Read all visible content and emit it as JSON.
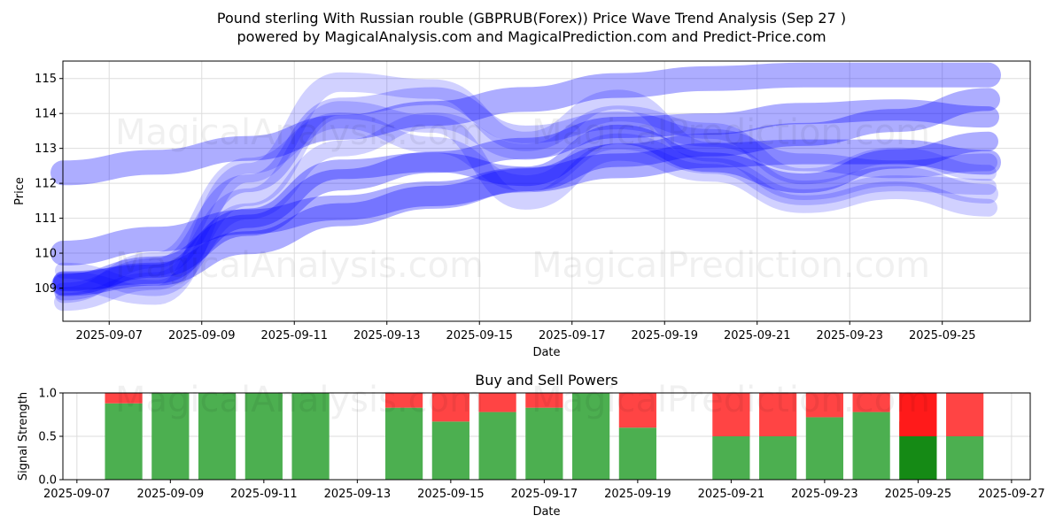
{
  "title_line1": "Pound sterling With Russian rouble (GBPRUB(Forex)) Price Wave Trend Analysis (Sep 27 )",
  "title_line2": "powered by MagicalAnalysis.com and MagicalPrediction.com and Predict-Price.com",
  "watermark_left": "MagicalAnalysis.com",
  "watermark_right": "MagicalPrediction.com",
  "colors": {
    "wave": "#0000ff",
    "buy": "#4caf50",
    "sell": "#ff4444",
    "buy_strong": "#158a15",
    "sell_strong": "#ff1a1a",
    "mix": "#c63a1a"
  },
  "chart_data": [
    {
      "type": "line",
      "title": "",
      "xlabel": "Date",
      "ylabel": "Price",
      "ylim": [
        108.05,
        115.5
      ],
      "xlim": [
        "2025-09-06",
        "2025-09-26.9"
      ],
      "yticks": [
        109,
        110,
        111,
        112,
        113,
        114,
        115
      ],
      "xticks": [
        "2025-09-07",
        "2025-09-09",
        "2025-09-11",
        "2025-09-13",
        "2025-09-15",
        "2025-09-17",
        "2025-09-19",
        "2025-09-21",
        "2025-09-23",
        "2025-09-25"
      ],
      "grid": true,
      "series": [
        {
          "name": "wave-1",
          "width": 28,
          "opacity": 0.32,
          "x": [
            "2025-09-06",
            "2025-09-08",
            "2025-09-10",
            "2025-09-12",
            "2025-09-14",
            "2025-09-16",
            "2025-09-18",
            "2025-09-20",
            "2025-09-22",
            "2025-09-24",
            "2025-09-26"
          ],
          "y": [
            112.3,
            112.6,
            113.0,
            113.6,
            114.0,
            114.4,
            114.8,
            115.0,
            115.1,
            115.1,
            115.1
          ]
        },
        {
          "name": "wave-2",
          "width": 28,
          "opacity": 0.32,
          "x": [
            "2025-09-06",
            "2025-09-08",
            "2025-09-10",
            "2025-09-12",
            "2025-09-14",
            "2025-09-16",
            "2025-09-18",
            "2025-09-20",
            "2025-09-22",
            "2025-09-24",
            "2025-09-26"
          ],
          "y": [
            110.0,
            110.4,
            110.9,
            111.3,
            111.7,
            112.1,
            112.5,
            112.8,
            112.9,
            112.9,
            112.6
          ]
        },
        {
          "name": "wave-3",
          "width": 26,
          "opacity": 0.32,
          "x": [
            "2025-09-06",
            "2025-09-08",
            "2025-09-10",
            "2025-09-12",
            "2025-09-14",
            "2025-09-16",
            "2025-09-18",
            "2025-09-20",
            "2025-09-22",
            "2025-09-24",
            "2025-09-26"
          ],
          "y": [
            109.1,
            109.4,
            110.3,
            111.1,
            111.6,
            112.1,
            112.8,
            113.1,
            113.4,
            113.8,
            114.4
          ]
        },
        {
          "name": "wave-4",
          "width": 24,
          "opacity": 0.32,
          "x": [
            "2025-09-06",
            "2025-09-08",
            "2025-09-10",
            "2025-09-12",
            "2025-09-14",
            "2025-09-16",
            "2025-09-18",
            "2025-09-20",
            "2025-09-22",
            "2025-09-24",
            "2025-09-26"
          ],
          "y": [
            109.1,
            109.6,
            110.8,
            112.1,
            112.6,
            113.0,
            113.6,
            113.7,
            114.0,
            114.1,
            113.9
          ]
        },
        {
          "name": "wave-5",
          "width": 22,
          "opacity": 0.32,
          "x": [
            "2025-09-06",
            "2025-09-08",
            "2025-09-10",
            "2025-09-12",
            "2025-09-14",
            "2025-09-16",
            "2025-09-18",
            "2025-09-20",
            "2025-09-22",
            "2025-09-24",
            "2025-09-26"
          ],
          "y": [
            109.2,
            109.4,
            111.0,
            112.4,
            112.6,
            112.2,
            113.4,
            112.6,
            112.0,
            112.7,
            113.2
          ]
        },
        {
          "name": "wave-6",
          "width": 20,
          "opacity": 0.22,
          "x": [
            "2025-09-06",
            "2025-09-08",
            "2025-09-10",
            "2025-09-12",
            "2025-09-14",
            "2025-09-16",
            "2025-09-18",
            "2025-09-20",
            "2025-09-22",
            "2025-09-24",
            "2025-09-26"
          ],
          "y": [
            108.9,
            109.6,
            112.0,
            114.2,
            114.5,
            113.4,
            113.8,
            113.3,
            112.6,
            112.4,
            112.6
          ]
        },
        {
          "name": "wave-7",
          "width": 22,
          "opacity": 0.18,
          "x": [
            "2025-09-06",
            "2025-09-08",
            "2025-09-10",
            "2025-09-12",
            "2025-09-14",
            "2025-09-16",
            "2025-09-18",
            "2025-09-20",
            "2025-09-22",
            "2025-09-24",
            "2025-09-26"
          ],
          "y": [
            109.2,
            108.8,
            112.3,
            114.9,
            114.7,
            113.2,
            114.4,
            112.9,
            111.8,
            112.2,
            111.7
          ]
        },
        {
          "name": "wave-8",
          "width": 20,
          "opacity": 0.18,
          "x": [
            "2025-09-06",
            "2025-09-08",
            "2025-09-10",
            "2025-09-12",
            "2025-09-14",
            "2025-09-16",
            "2025-09-18",
            "2025-09-20",
            "2025-09-22",
            "2025-09-24",
            "2025-09-26"
          ],
          "y": [
            108.6,
            109.2,
            111.6,
            114.1,
            113.7,
            111.5,
            112.9,
            112.3,
            111.4,
            111.8,
            111.3
          ]
        },
        {
          "name": "wave-9",
          "width": 18,
          "opacity": 0.18,
          "x": [
            "2025-09-06",
            "2025-09-08",
            "2025-09-10",
            "2025-09-12",
            "2025-09-14",
            "2025-09-16",
            "2025-09-18",
            "2025-09-20",
            "2025-09-22",
            "2025-09-24",
            "2025-09-26"
          ],
          "y": [
            109.5,
            109.0,
            111.2,
            113.0,
            113.8,
            112.9,
            114.0,
            113.5,
            112.2,
            112.8,
            112.3
          ]
        },
        {
          "name": "wave-10",
          "width": 18,
          "opacity": 0.18,
          "x": [
            "2025-09-06",
            "2025-09-08",
            "2025-09-10",
            "2025-09-12",
            "2025-09-14",
            "2025-09-16",
            "2025-09-18",
            "2025-09-20",
            "2025-09-22",
            "2025-09-24",
            "2025-09-26"
          ],
          "y": [
            108.8,
            109.8,
            112.5,
            113.8,
            113.1,
            112.0,
            113.2,
            112.5,
            111.6,
            112.0,
            111.9
          ]
        }
      ]
    },
    {
      "type": "bar",
      "title": "Buy and Sell Powers",
      "xlabel": "Date",
      "ylabel": "Signal Strength",
      "ylim": [
        0,
        1.0
      ],
      "yticks": [
        0.0,
        0.5,
        1.0
      ],
      "ytick_labels": [
        "0.0",
        "0.5",
        "1.0"
      ],
      "xlim": [
        "2025-09-06.7",
        "2025-09-27.4"
      ],
      "xticks": [
        "2025-09-07",
        "2025-09-09",
        "2025-09-11",
        "2025-09-13",
        "2025-09-15",
        "2025-09-17",
        "2025-09-19",
        "2025-09-21",
        "2025-09-23",
        "2025-09-25",
        "2025-09-27"
      ],
      "grid": true,
      "series": [
        {
          "name": "buy",
          "x": [
            "2025-09-08",
            "2025-09-09",
            "2025-09-10",
            "2025-09-11",
            "2025-09-12",
            "2025-09-14",
            "2025-09-15",
            "2025-09-16",
            "2025-09-17",
            "2025-09-18",
            "2025-09-19",
            "2025-09-21",
            "2025-09-22",
            "2025-09-23",
            "2025-09-24",
            "2025-09-25",
            "2025-09-26"
          ],
          "values": [
            0.88,
            1.0,
            1.0,
            1.0,
            1.0,
            0.83,
            0.67,
            0.78,
            0.83,
            1.0,
            0.6,
            0.5,
            0.5,
            0.72,
            0.78,
            0.67,
            0.5
          ]
        },
        {
          "name": "sell",
          "x": [
            "2025-09-08",
            "2025-09-09",
            "2025-09-10",
            "2025-09-11",
            "2025-09-12",
            "2025-09-14",
            "2025-09-15",
            "2025-09-16",
            "2025-09-17",
            "2025-09-18",
            "2025-09-19",
            "2025-09-21",
            "2025-09-22",
            "2025-09-23",
            "2025-09-24",
            "2025-09-25",
            "2025-09-26"
          ],
          "values": [
            0.12,
            0.0,
            0.0,
            0.0,
            0.0,
            0.17,
            0.33,
            0.22,
            0.17,
            0.0,
            0.4,
            0.5,
            0.5,
            0.28,
            0.22,
            0.33,
            0.5
          ]
        },
        {
          "name": "strong-buy",
          "x": [
            "2025-09-25"
          ],
          "values": [
            0.5
          ]
        },
        {
          "name": "strong-sell",
          "x": [
            "2025-09-25"
          ],
          "values": [
            0.5
          ]
        }
      ]
    }
  ]
}
